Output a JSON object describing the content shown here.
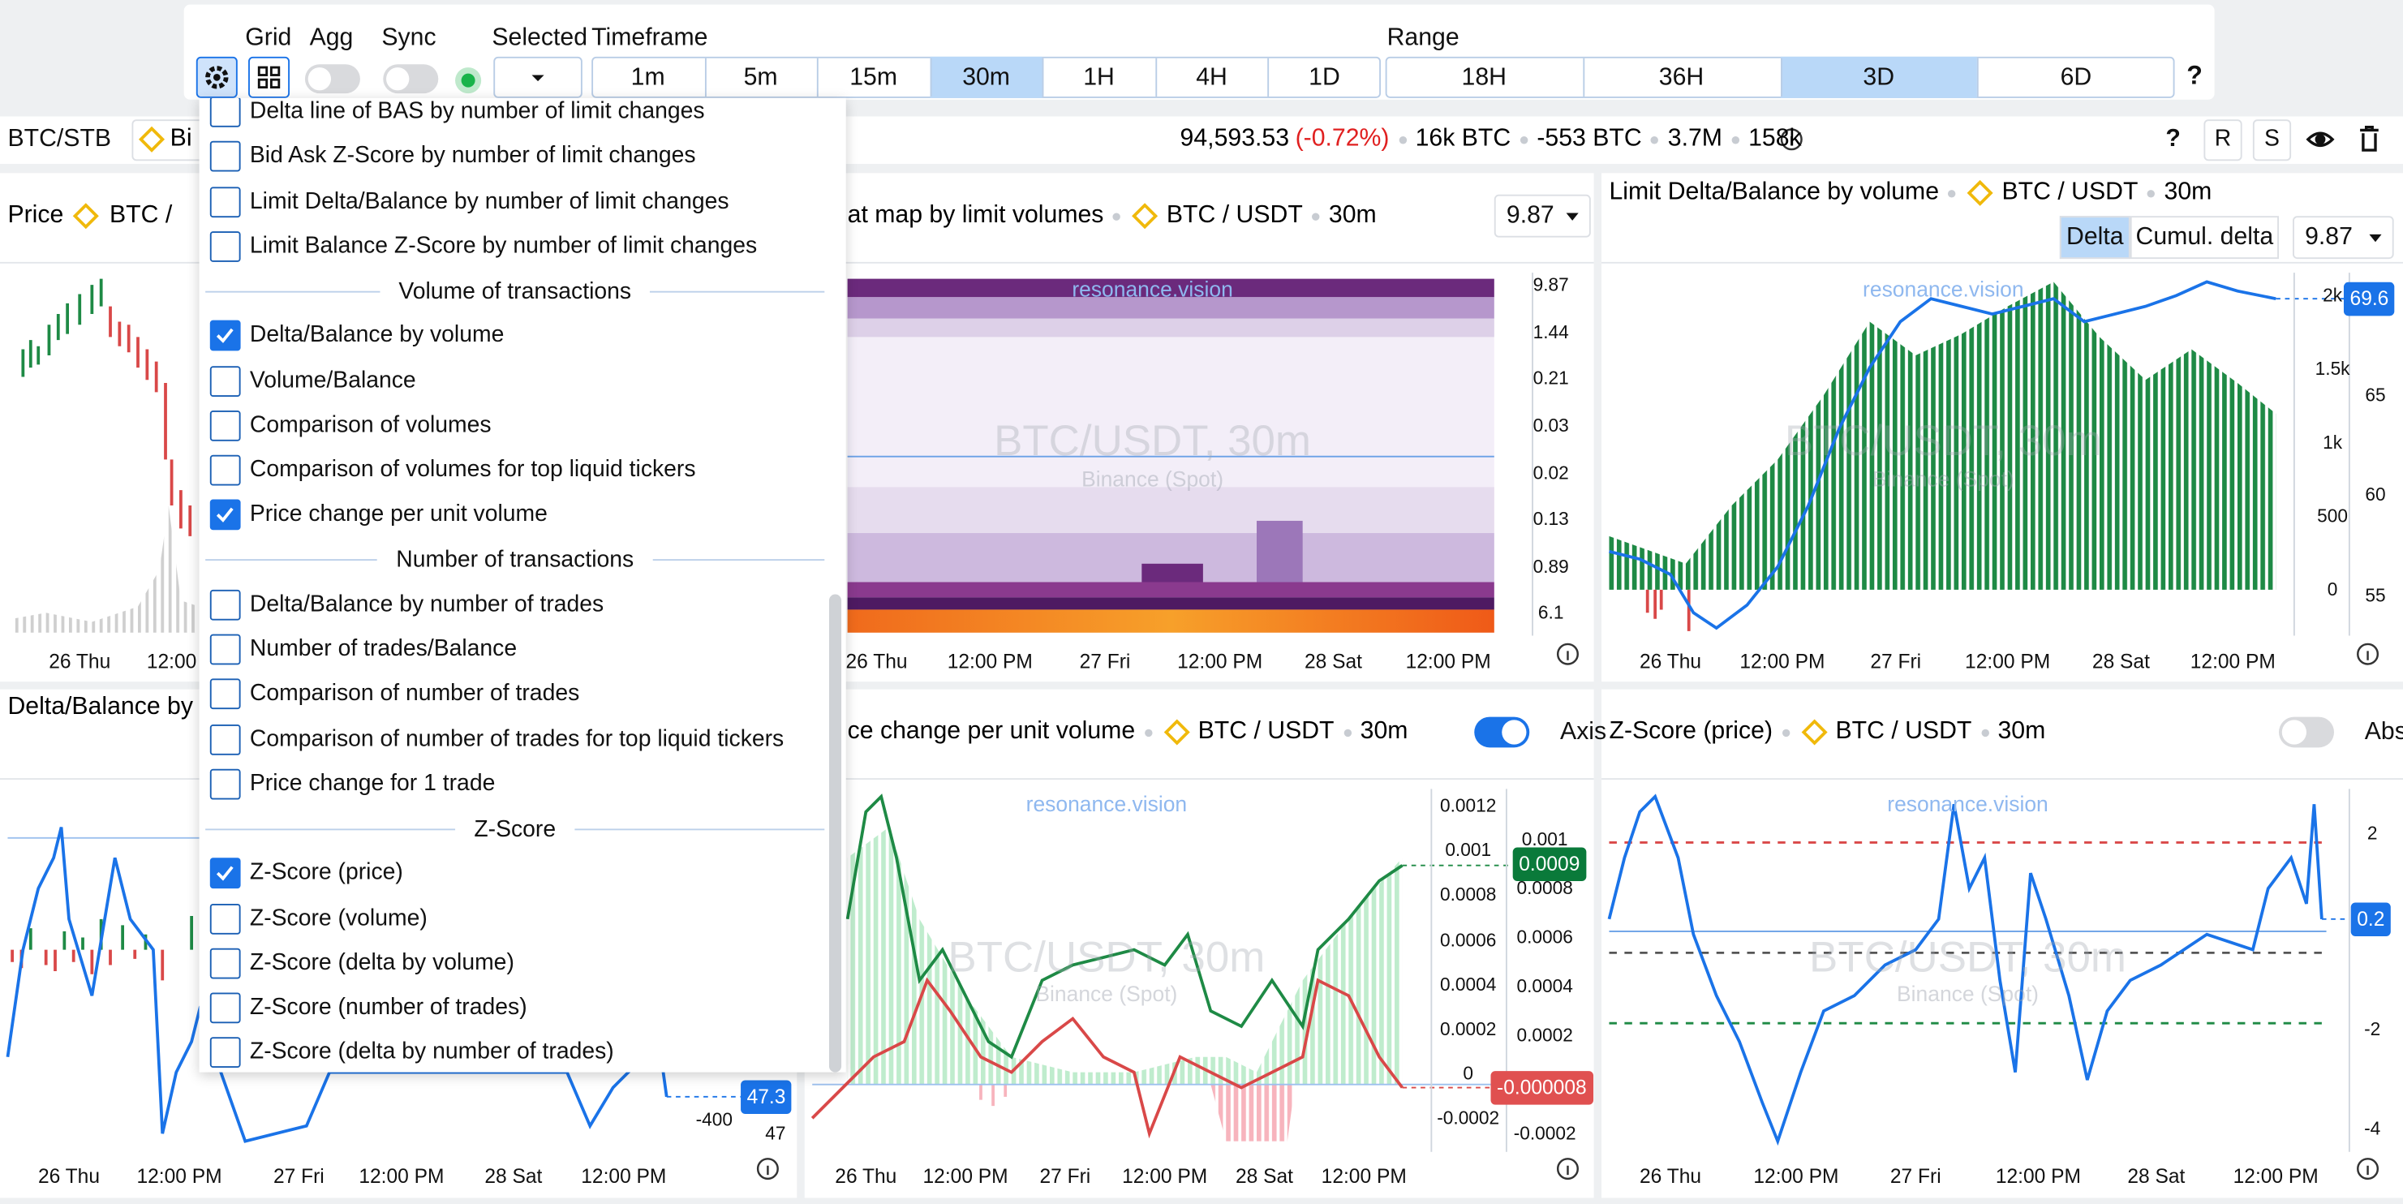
{
  "toolbar": {
    "grid": "Grid",
    "agg": "Agg",
    "sync": "Sync",
    "selected": "Selected",
    "timeframe": "Timeframe",
    "timeframes": [
      "1m",
      "5m",
      "15m",
      "30m",
      "1H",
      "4H",
      "1D"
    ],
    "active_timeframe": "30m",
    "range": "Range",
    "ranges": [
      "18H",
      "36H",
      "3D",
      "6D"
    ],
    "active_range": "3D",
    "help": "?"
  },
  "ticker": {
    "symbol": "BTC/STB",
    "exchange": "Bi",
    "price": "94,593.53",
    "change": "(-0.72%)",
    "stats": [
      "16k BTC",
      "-553 BTC",
      "3.7M",
      "158k"
    ],
    "help": "?",
    "buttons": [
      "R",
      "S"
    ]
  },
  "menu": {
    "items": [
      {
        "label": "Delta line of BAS by number of limit changes",
        "checked": false
      },
      {
        "label": "Bid Ask Z-Score by number of limit changes",
        "checked": false
      },
      {
        "label": "Limit Delta/Balance by number of limit changes",
        "checked": false
      },
      {
        "label": "Limit Balance Z-Score by number of limit changes",
        "checked": false
      }
    ],
    "sections": [
      {
        "title": "Volume of transactions",
        "items": [
          {
            "label": "Delta/Balance by volume",
            "checked": true
          },
          {
            "label": "Volume/Balance",
            "checked": false
          },
          {
            "label": "Comparison of volumes",
            "checked": false
          },
          {
            "label": "Comparison of volumes for top liquid tickers",
            "checked": false
          },
          {
            "label": "Price change per unit volume",
            "checked": true
          }
        ]
      },
      {
        "title": "Number of transactions",
        "items": [
          {
            "label": "Delta/Balance by number of trades",
            "checked": false
          },
          {
            "label": "Number of trades/Balance",
            "checked": false
          },
          {
            "label": "Comparison of number of trades",
            "checked": false
          },
          {
            "label": "Comparison of number of trades for top liquid tickers",
            "checked": false
          },
          {
            "label": "Price change for 1 trade",
            "checked": false
          }
        ]
      },
      {
        "title": "Z-Score",
        "items": [
          {
            "label": "Z-Score (price)",
            "checked": true
          },
          {
            "label": "Z-Score (volume)",
            "checked": false
          },
          {
            "label": "Z-Score (delta by volume)",
            "checked": false
          },
          {
            "label": "Z-Score (number of trades)",
            "checked": false
          },
          {
            "label": "Z-Score (delta by number of trades)",
            "checked": false
          }
        ]
      }
    ]
  },
  "panels": [
    {
      "title": "Price",
      "pair": "BTC / ",
      "x_labels": [
        "26 Thu",
        "12:00"
      ]
    },
    {
      "title": "at map by limit volumes",
      "pair": "BTC / USDT",
      "timeframe": "30m",
      "scale": "9.87",
      "watermark": "resonance.vision",
      "overlay": "BTC/USDT, 30m",
      "exchange": "Binance (Spot)",
      "right_axis": [
        "9.87",
        "1.44",
        "0.21",
        "0.03",
        "0.02",
        "0.13",
        "0.89",
        "6.1"
      ],
      "x_labels": [
        "26 Thu",
        "12:00 PM",
        "27 Fri",
        "12:00 PM",
        "28 Sat",
        "12:00 PM"
      ]
    },
    {
      "title": "Limit Delta/Balance by volume",
      "pair": "BTC / USDT",
      "timeframe": "30m",
      "modes": [
        "Delta",
        "Cumul. delta"
      ],
      "scale": "9.87",
      "watermark": "resonance.vision",
      "overlay": "BTC/USDT, 30m",
      "exchange": "Binance (Spot)",
      "left_axis": [
        "2k",
        "1.5k",
        "1k",
        "500",
        "0"
      ],
      "right_axis": [
        "65",
        "60",
        "55"
      ],
      "badges": [
        "69.6"
      ],
      "x_labels": [
        "26 Thu",
        "12:00 PM",
        "27 Fri",
        "12:00 PM",
        "28 Sat",
        "12:00 PM"
      ]
    },
    {
      "title": "Delta/Balance by",
      "left_axis": [
        "-400"
      ],
      "right_axis": [
        "47"
      ],
      "badges": [
        "47.3"
      ],
      "x_labels": [
        "26 Thu",
        "12:00 PM",
        "27 Fri",
        "12:00 PM",
        "28 Sat",
        "12:00 PM"
      ]
    },
    {
      "title": "ce change per unit volume",
      "pair": "BTC / USDT",
      "timeframe": "30m",
      "toggle": "Axis",
      "watermark": "resonance.vision",
      "overlay": "BTC/USDT, 30m",
      "exchange": "Binance (Spot)",
      "left_axis": [
        "0.0012",
        "0.001",
        "0.0008",
        "0.0006",
        "0.0004",
        "0.0002",
        "0",
        "-0.0002"
      ],
      "right_axis": [
        "0.001",
        "0.0008",
        "0.0006",
        "0.0004",
        "0.0002",
        "-0.0002"
      ],
      "badges": [
        "0.0009",
        "-0.000008"
      ],
      "x_labels": [
        "26 Thu",
        "12:00 PM",
        "27 Fri",
        "12:00 PM",
        "28 Sat",
        "12:00 PM"
      ]
    },
    {
      "title": "Z-Score (price)",
      "pair": "BTC / USDT",
      "timeframe": "30m",
      "toggle": "Abs",
      "watermark": "resonance.vision",
      "overlay": "BTC/USDT, 30m",
      "exchange": "Binance (Spot)",
      "right_axis": [
        "2",
        "-2",
        "-4"
      ],
      "badges": [
        "0.2"
      ],
      "x_labels": [
        "26 Thu",
        "12:00 PM",
        "27 Fri",
        "12:00 PM",
        "28 Sat",
        "12:00 PM"
      ]
    }
  ]
}
